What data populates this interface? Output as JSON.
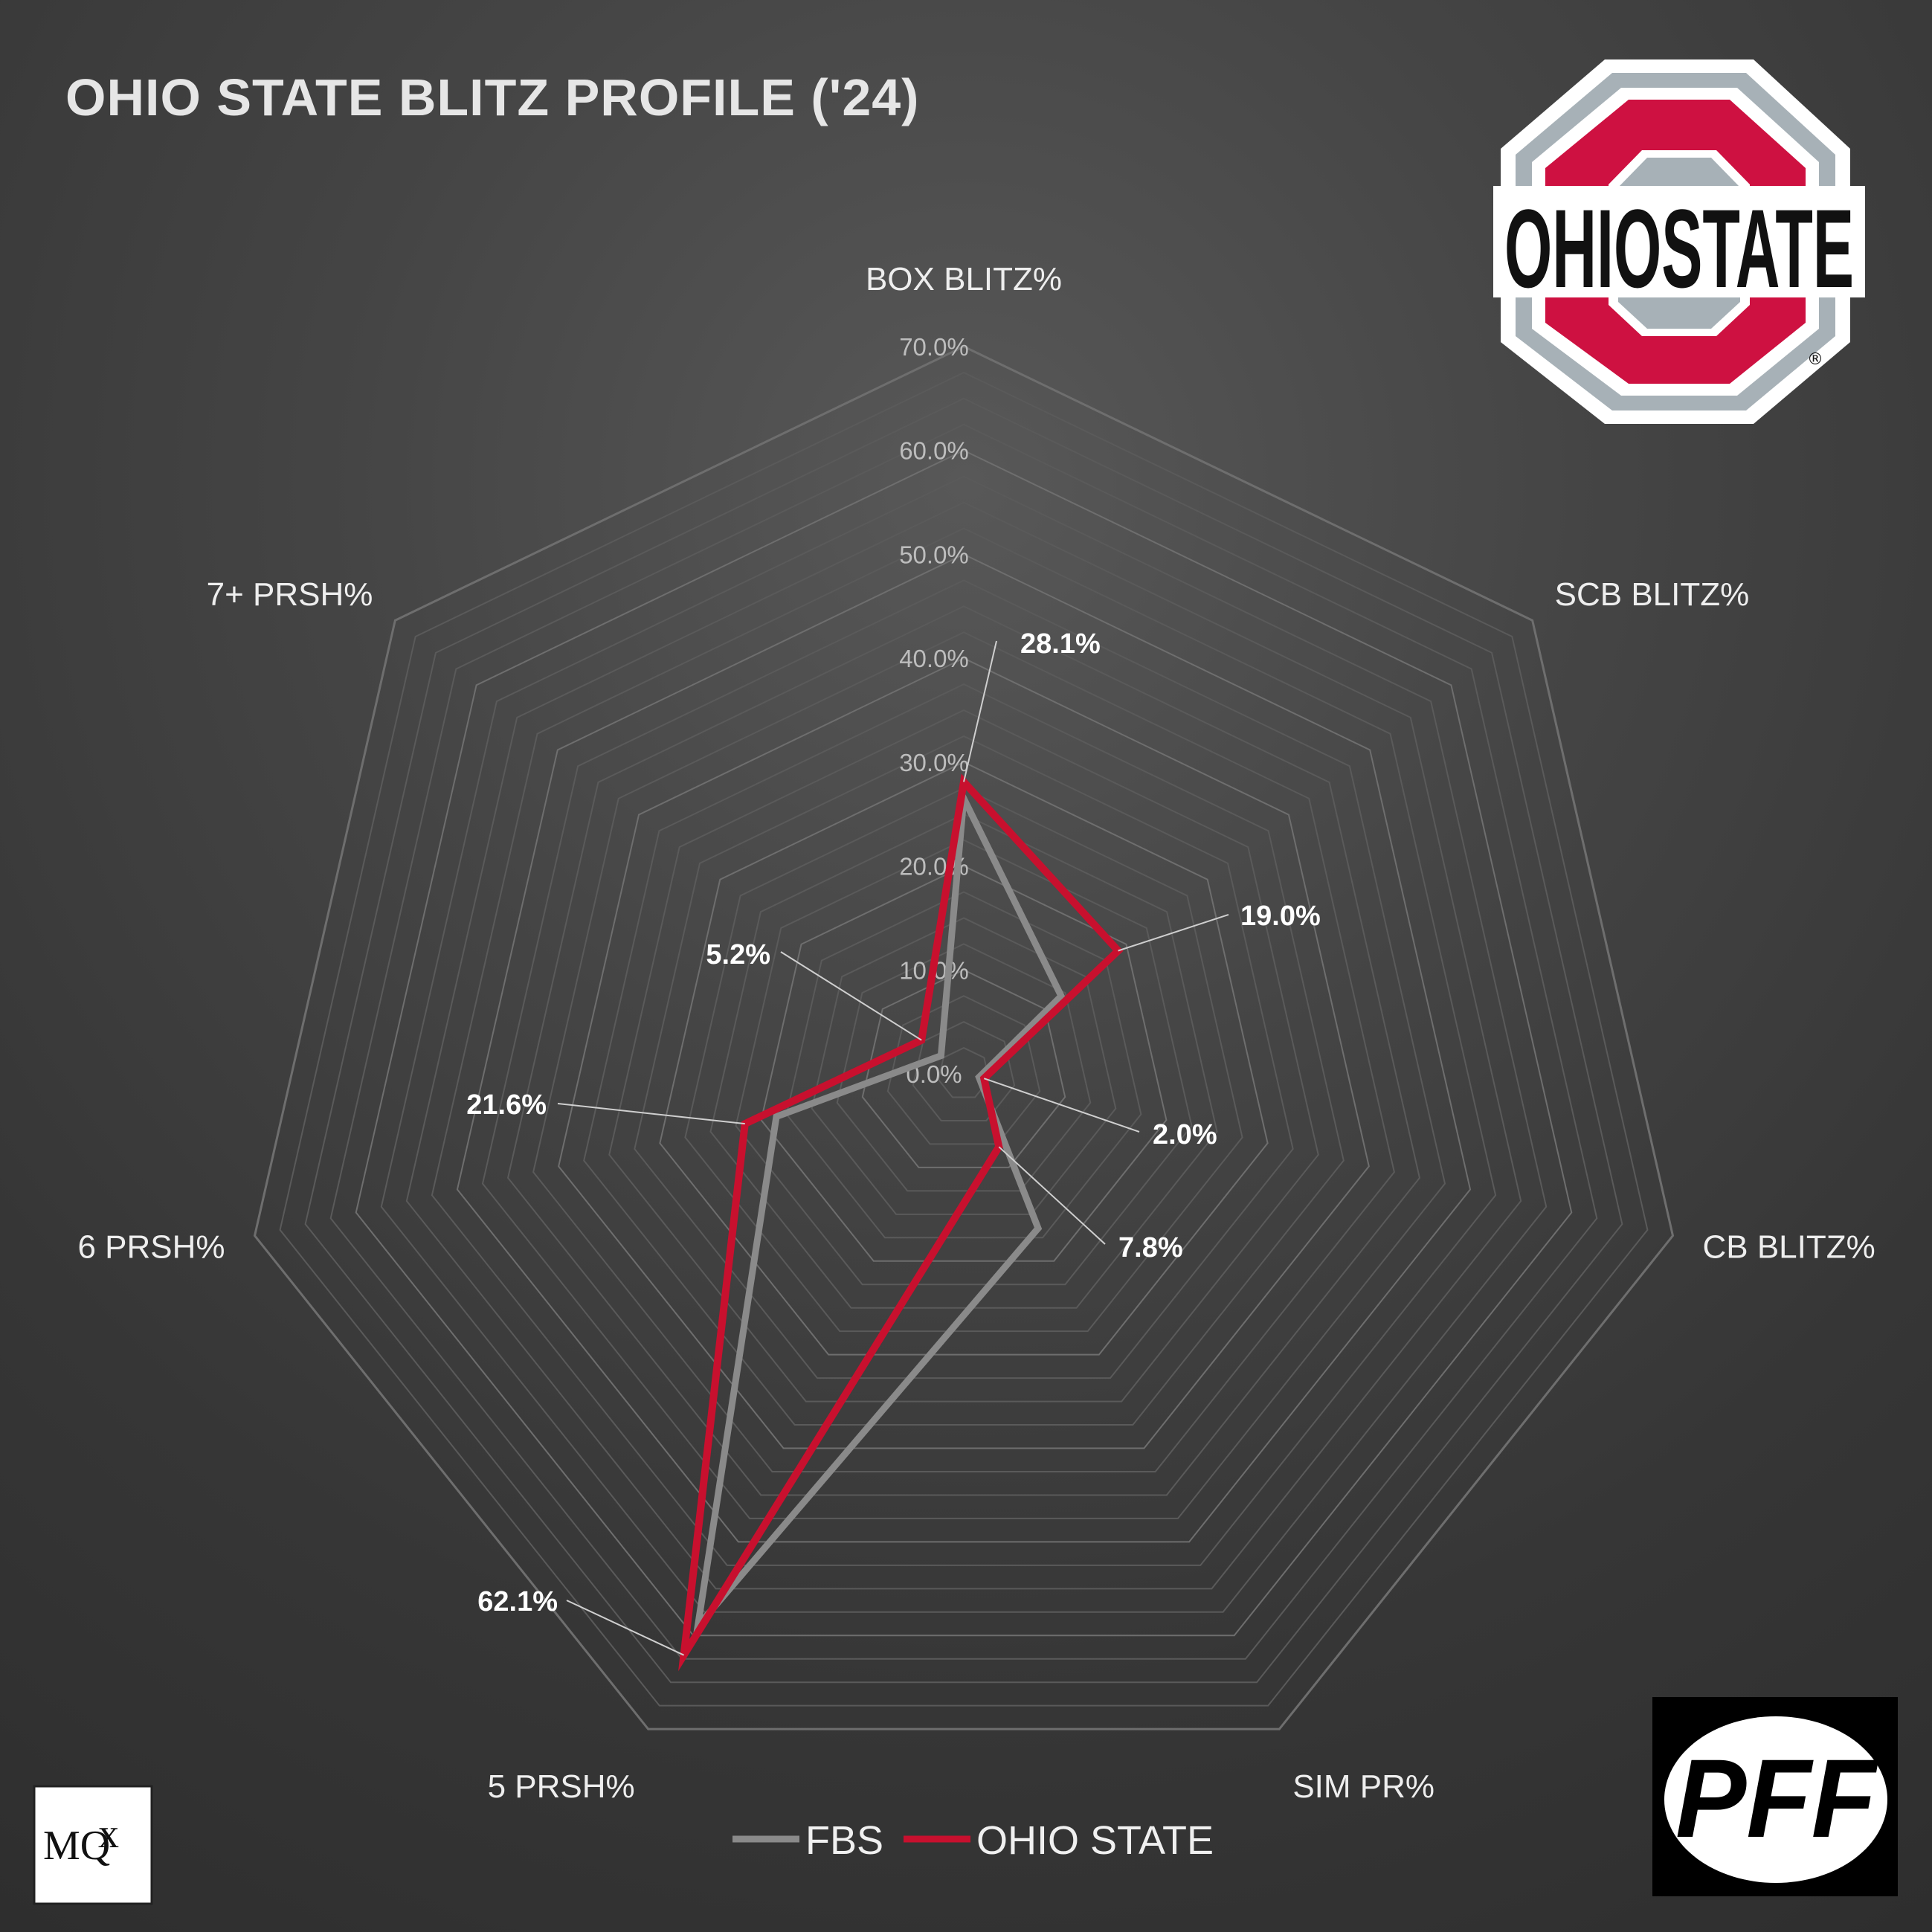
{
  "title": "OHIO STATE BLITZ PROFILE ('24)",
  "chart_data": {
    "type": "radar",
    "title": "OHIO STATE BLITZ PROFILE ('24)",
    "axes": [
      "BOX BLITZ%",
      "SCB BLITZ%",
      "CB BLITZ%",
      "SIM PR%",
      "5 PRSH%",
      "6 PRSH%",
      "7+ PRSH%"
    ],
    "r_range": [
      0,
      70
    ],
    "grid_step": 2.5,
    "tick_values": [
      0,
      10,
      20,
      30,
      40,
      50,
      60,
      70
    ],
    "tick_labels": [
      "0.0%",
      "10.0%",
      "20.0%",
      "30.0%",
      "40.0%",
      "50.0%",
      "60.0%",
      "70.0%"
    ],
    "series": [
      {
        "name": "FBS",
        "color": "#8a8a8a",
        "values": [
          26.5,
          12.0,
          1.5,
          16.5,
          59.0,
          18.5,
          2.8
        ]
      },
      {
        "name": "OHIO STATE",
        "color": "#c8102e",
        "values": [
          28.1,
          19.0,
          2.0,
          7.8,
          62.1,
          21.6,
          5.2
        ]
      }
    ],
    "data_labels": [
      "28.1%",
      "19.0%",
      "2.0%",
      "7.8%",
      "62.1%",
      "21.6%",
      "5.2%"
    ],
    "legend": "bottom-center"
  },
  "logos": {
    "top_right": {
      "text": "OHIOSTATE",
      "registered": "®"
    },
    "bottom_left": {
      "text": "MQ",
      "sub": "x"
    },
    "bottom_right": {
      "text": "PFF"
    }
  }
}
